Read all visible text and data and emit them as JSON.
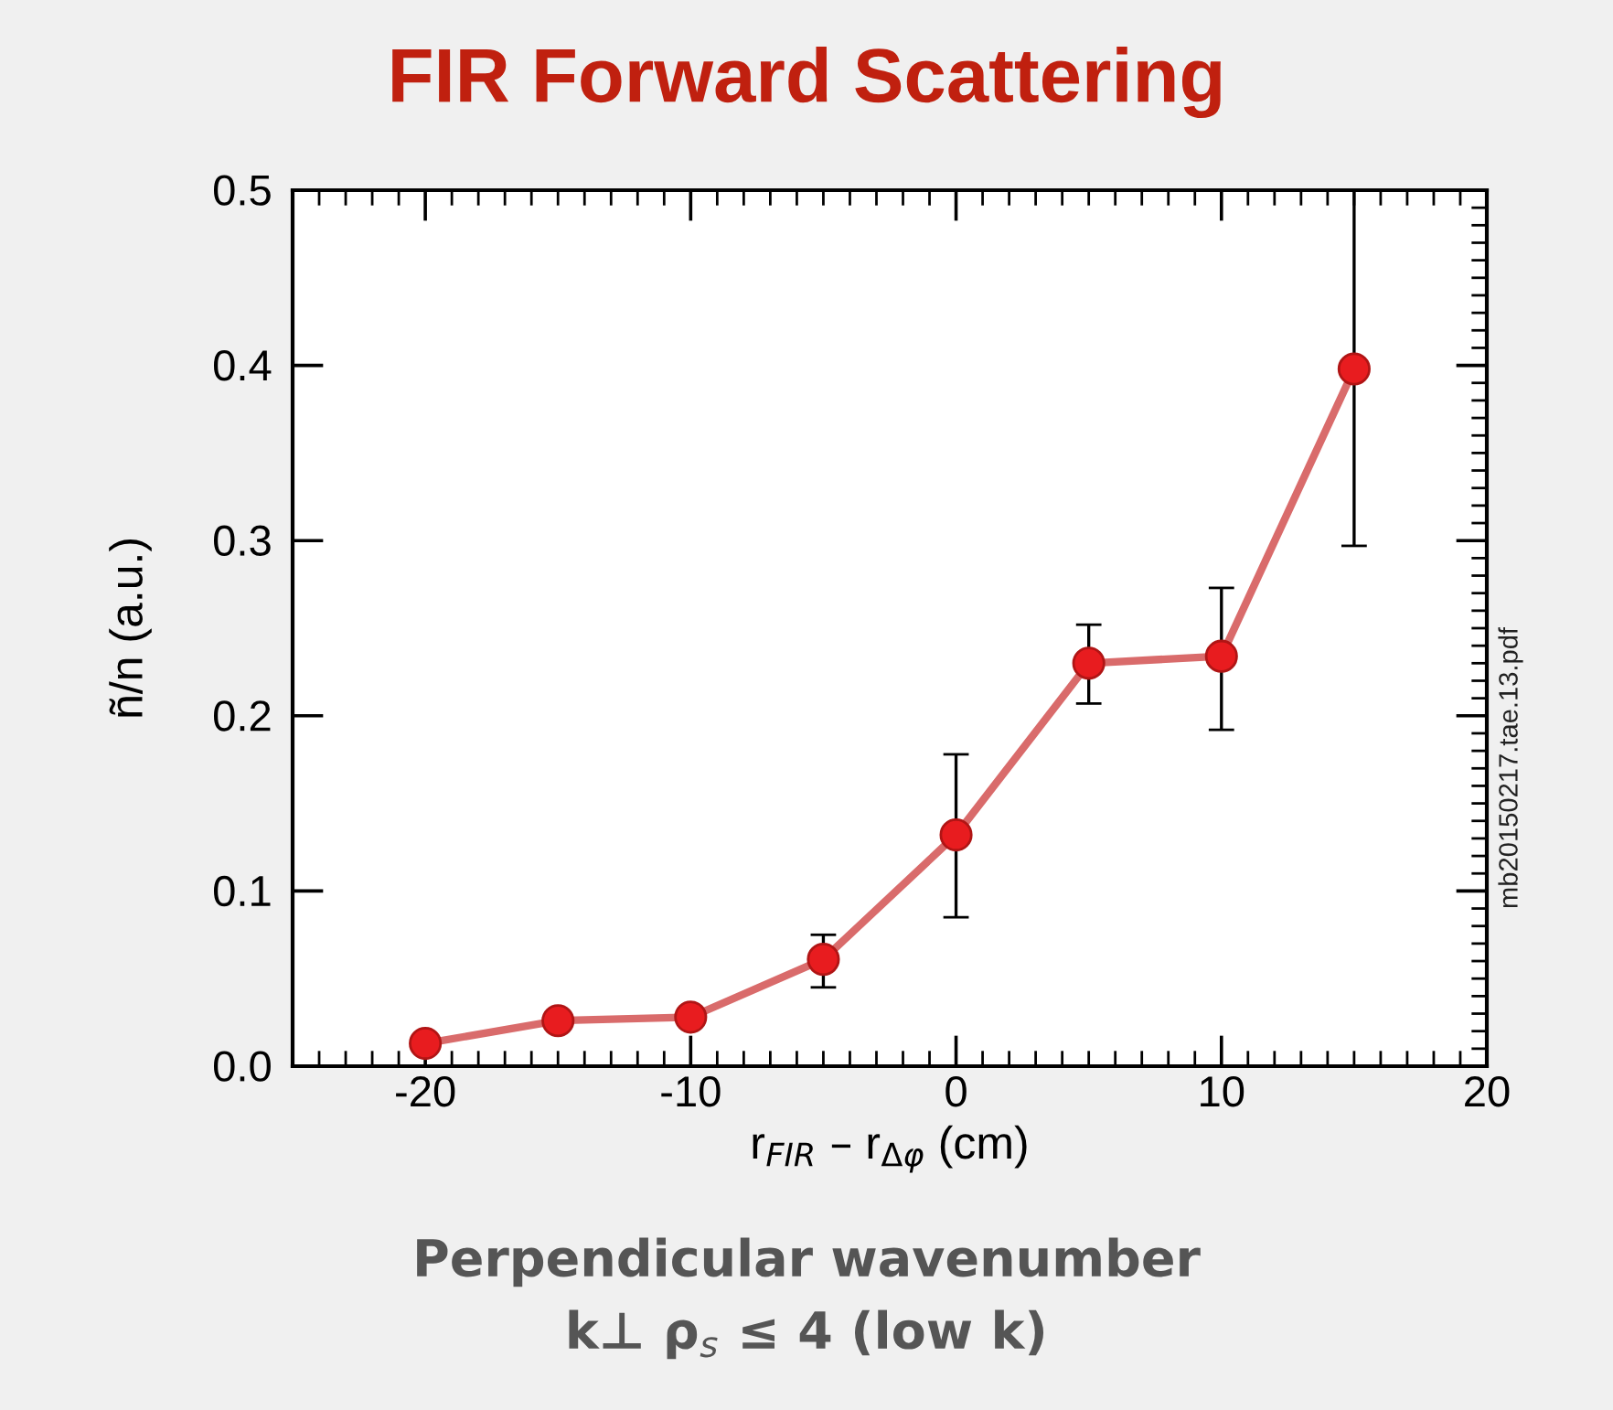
{
  "chart_data": {
    "type": "line",
    "title": "FIR Forward Scattering",
    "xlabel": "r$_{FIR}$ – r$_{Δφ}$ (cm)",
    "ylabel": "ñ/n (a.u.)",
    "annotations": [
      "Perpendicular wavenumber\nk⊥ ρ$_{s}$ ≤ 4 (low k)",
      "mb20150217.tae.13.pdf"
    ],
    "x": [
      -20,
      -15,
      -10,
      -5,
      0,
      5,
      10,
      15
    ],
    "series": [
      {
        "color": "#d96b6b",
        "values": [
          0.013,
          0.026,
          0.028,
          0.061,
          0.132,
          0.23,
          0.234,
          0.398
        ],
        "errors": [
          null,
          null,
          null,
          [
            0.045,
            0.075
          ],
          [
            0.085,
            0.178
          ],
          [
            0.207,
            0.252
          ],
          [
            0.192,
            0.273
          ],
          [
            0.297,
            0.5
          ]
        ]
      }
    ],
    "marker": "circle",
    "line_style": "solid",
    "grid": false,
    "legend": false,
    "xlim": [
      -25,
      20
    ],
    "xticks": [
      -20,
      -10,
      0,
      10,
      20
    ],
    "ylim": [
      0,
      0.5
    ],
    "yticks": [
      {
        "value": 0,
        "label": "0.0"
      },
      0.1,
      0.2,
      0.3,
      0.4,
      0.5
    ]
  }
}
